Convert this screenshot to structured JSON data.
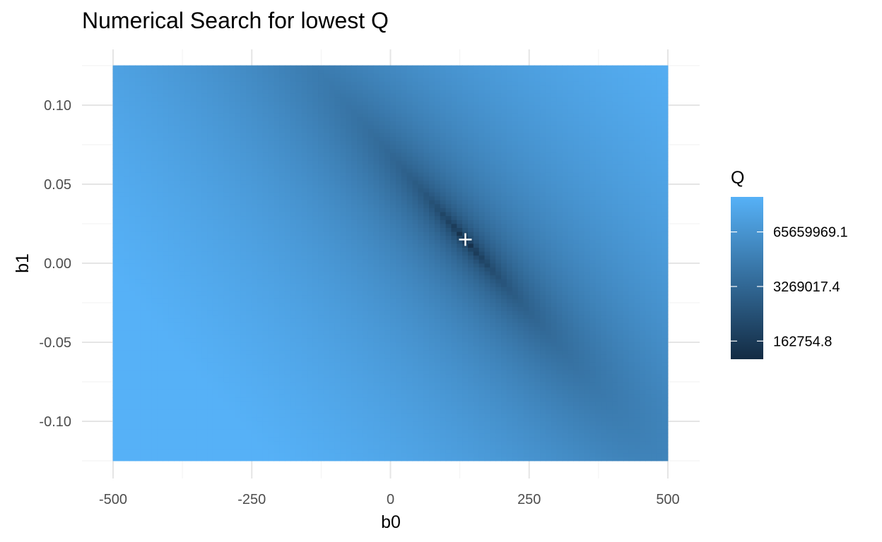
{
  "chart_data": {
    "type": "heatmap",
    "title": "Numerical Search for lowest Q",
    "xlabel": "b0",
    "ylabel": "b1",
    "xlim": [
      -500,
      500
    ],
    "ylim": [
      -0.125,
      0.125
    ],
    "x_ticks": [
      -500,
      -250,
      0,
      250,
      500
    ],
    "x_tick_labels": [
      "-500",
      "-250",
      "0",
      "250",
      "500"
    ],
    "y_ticks": [
      0.1,
      0.05,
      0.0,
      -0.05,
      -0.1
    ],
    "y_tick_labels": [
      "0.10",
      "0.05",
      "0.00",
      "-0.05",
      "-0.10"
    ],
    "grid": true,
    "colorscale": {
      "low": "#132B43",
      "high": "#56B1F7",
      "transform": "log"
    },
    "legend": {
      "title": "Q",
      "position": "right",
      "labels": [
        "65659969.1",
        "3269017.4",
        "162754.8"
      ],
      "values": [
        65659969.1,
        3269017.4,
        162754.8
      ]
    },
    "minimum": {
      "b0": 135,
      "b1": 0.015,
      "marker": "+"
    }
  }
}
